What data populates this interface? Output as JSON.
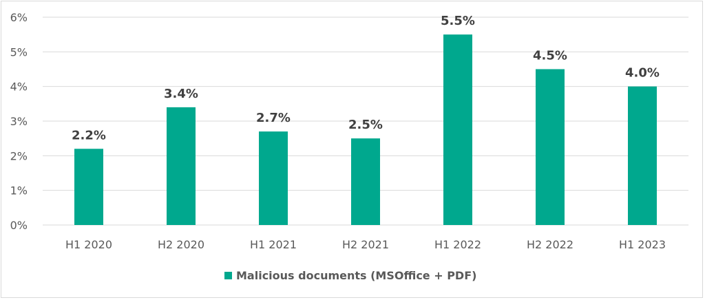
{
  "chart_data": {
    "type": "bar",
    "categories": [
      "H1 2020",
      "H2 2020",
      "H1 2021",
      "H2 2021",
      "H1 2022",
      "H2 2022",
      "H1 2023"
    ],
    "series": [
      {
        "name": "Malicious documents (MSOffice + PDF)",
        "values": [
          2.2,
          3.4,
          2.7,
          2.5,
          5.5,
          4.5,
          4.0
        ],
        "color": "#00A88E"
      }
    ],
    "data_labels": [
      "2.2%",
      "3.4%",
      "2.7%",
      "2.5%",
      "5.5%",
      "4.5%",
      "4.0%"
    ],
    "y_ticks": [
      "0%",
      "1%",
      "2%",
      "3%",
      "4%",
      "5%",
      "6%"
    ],
    "ylim": [
      0,
      6
    ],
    "grid": true,
    "legend_position": "bottom",
    "title": "",
    "xlabel": "",
    "ylabel": ""
  }
}
